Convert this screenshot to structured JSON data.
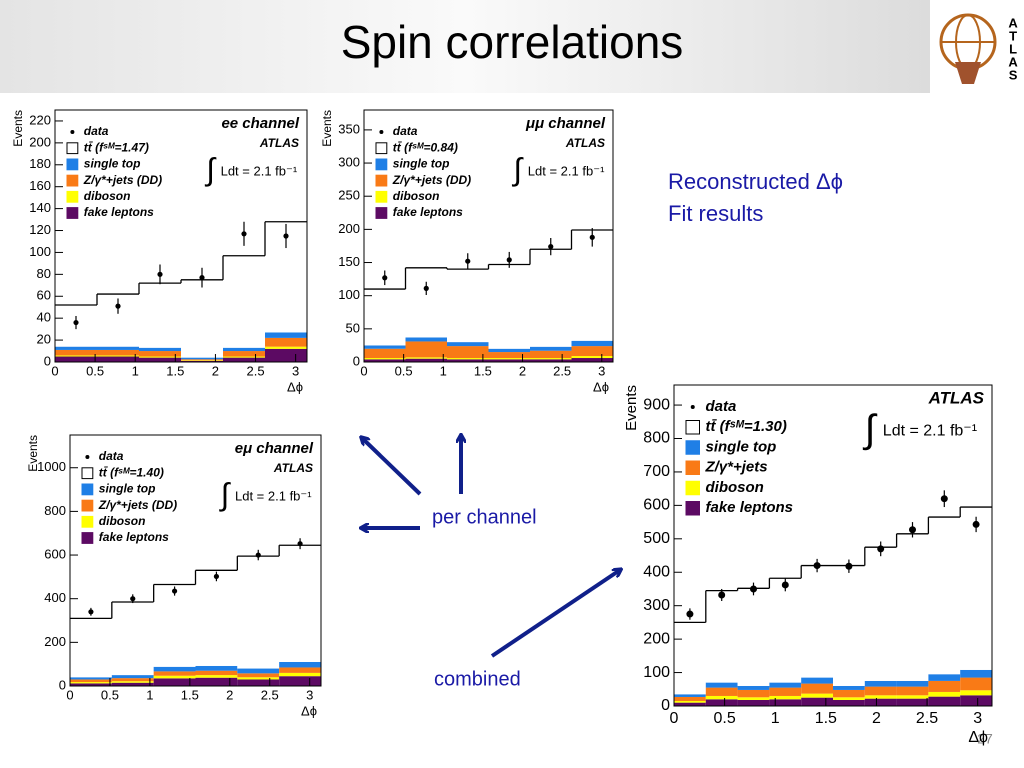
{
  "slide": {
    "title": "Spin correlations",
    "notes": [
      "Reconstructed Δϕ",
      "Fit results"
    ],
    "per_channel": "per channel",
    "combined": "combined",
    "page": "27",
    "logo": "ATLAS"
  },
  "chart_data": [
    {
      "type": "histogram",
      "x_label": "Δϕ",
      "y_label": "Events",
      "annotations": {
        "channel": "ee channel",
        "experiment": "ATLAS",
        "integral": "∫",
        "lumi": "Ldt = 2.1 fb⁻¹"
      },
      "bins": [
        0,
        0.5236,
        1.0472,
        1.5708,
        2.0944,
        2.618,
        3.1416
      ],
      "xlim": [
        0,
        3.1416
      ],
      "xticks": [
        0,
        0.5,
        1,
        1.5,
        2,
        2.5,
        3
      ],
      "ylim": [
        0,
        230
      ],
      "yticks": [
        0,
        20,
        40,
        60,
        80,
        100,
        120,
        140,
        160,
        180,
        200,
        220
      ],
      "data": {
        "name": "data",
        "values": [
          36,
          51,
          80,
          77,
          117,
          115
        ],
        "errors": [
          6,
          7,
          9,
          9,
          11,
          11
        ]
      },
      "series": [
        {
          "name": "fake leptons",
          "color": "#5c0a63",
          "values": [
            5,
            5,
            4,
            1,
            4,
            12
          ]
        },
        {
          "name": "diboson",
          "color": "#ffff00",
          "values": [
            1,
            1,
            1,
            0.5,
            1,
            2
          ]
        },
        {
          "name": "Z/γ*+jets (DD)",
          "color": "#f97a16",
          "values": [
            5,
            5,
            5,
            1,
            5,
            8
          ]
        },
        {
          "name": "single top",
          "color": "#1f7fe6",
          "values": [
            3,
            3,
            3,
            1.5,
            3,
            5
          ]
        },
        {
          "name": "tt̄ (fˢᴹ=1.47)",
          "color": "#ffffff",
          "values": [
            38,
            48,
            59,
            71,
            84,
            101
          ]
        }
      ]
    },
    {
      "type": "histogram",
      "x_label": "Δϕ",
      "y_label": "Events",
      "annotations": {
        "channel": "μμ channel",
        "experiment": "ATLAS",
        "integral": "∫",
        "lumi": "Ldt = 2.1 fb⁻¹"
      },
      "bins": [
        0,
        0.5236,
        1.0472,
        1.5708,
        2.0944,
        2.618,
        3.1416
      ],
      "xlim": [
        0,
        3.1416
      ],
      "xticks": [
        0,
        0.5,
        1,
        1.5,
        2,
        2.5,
        3
      ],
      "ylim": [
        0,
        380
      ],
      "yticks": [
        0,
        50,
        100,
        150,
        200,
        250,
        300,
        350
      ],
      "data": {
        "name": "data",
        "values": [
          127,
          111,
          152,
          154,
          174,
          188
        ],
        "errors": [
          11,
          10,
          12,
          12,
          13,
          14
        ]
      },
      "series": [
        {
          "name": "fake leptons",
          "color": "#5c0a63",
          "values": [
            4,
            5,
            4,
            4,
            4,
            6
          ]
        },
        {
          "name": "diboson",
          "color": "#ffff00",
          "values": [
            2,
            2,
            2,
            2,
            2,
            3
          ]
        },
        {
          "name": "Z/γ*+jets (DD)",
          "color": "#f97a16",
          "values": [
            14,
            24,
            18,
            9,
            11,
            15
          ]
        },
        {
          "name": "single top",
          "color": "#1f7fe6",
          "values": [
            5,
            6,
            6,
            5,
            6,
            8
          ]
        },
        {
          "name": "tt̄ (fˢᴹ=0.84)",
          "color": "#ffffff",
          "values": [
            85,
            105,
            110,
            127,
            147,
            167
          ]
        }
      ]
    },
    {
      "type": "histogram",
      "x_label": "Δϕ",
      "y_label": "Events",
      "annotations": {
        "channel": "eμ channel",
        "experiment": "ATLAS",
        "integral": "∫",
        "lumi": "Ldt = 2.1 fb⁻¹"
      },
      "bins": [
        0,
        0.5236,
        1.0472,
        1.5708,
        2.0944,
        2.618,
        3.1416
      ],
      "xlim": [
        0,
        3.1416
      ],
      "xticks": [
        0,
        0.5,
        1,
        1.5,
        2,
        2.5,
        3
      ],
      "ylim": [
        0,
        1150
      ],
      "yticks": [
        0,
        200,
        400,
        600,
        800,
        1000
      ],
      "data": {
        "name": "data",
        "values": [
          340,
          400,
          435,
          502,
          600,
          652
        ],
        "errors": [
          18,
          20,
          21,
          22,
          24,
          25
        ]
      },
      "series": [
        {
          "name": "fake leptons",
          "color": "#5c0a63",
          "values": [
            12,
            15,
            35,
            38,
            30,
            45
          ]
        },
        {
          "name": "diboson",
          "color": "#ffff00",
          "values": [
            6,
            7,
            12,
            12,
            10,
            15
          ]
        },
        {
          "name": "Z/γ*+jets (DD)",
          "color": "#f97a16",
          "values": [
            12,
            14,
            20,
            20,
            18,
            25
          ]
        },
        {
          "name": "single top",
          "color": "#1f7fe6",
          "values": [
            10,
            14,
            21,
            22,
            22,
            25
          ]
        },
        {
          "name": "tt̄ (fˢᴹ=1.40)",
          "color": "#ffffff",
          "values": [
            270,
            335,
            377,
            438,
            515,
            535
          ]
        }
      ]
    },
    {
      "type": "histogram",
      "x_label": "Δϕ",
      "y_label": "Events",
      "annotations": {
        "experiment": "ATLAS",
        "integral": "∫",
        "lumi": "Ldt = 2.1 fb⁻¹"
      },
      "bins": [
        0,
        0.3142,
        0.6283,
        0.9425,
        1.2566,
        1.5708,
        1.885,
        2.1991,
        2.5133,
        2.8274,
        3.1416
      ],
      "xlim": [
        0,
        3.1416
      ],
      "xticks": [
        0,
        0.5,
        1,
        1.5,
        2,
        2.5,
        3
      ],
      "ylim": [
        0,
        960
      ],
      "yticks": [
        0,
        100,
        200,
        300,
        400,
        500,
        600,
        700,
        800,
        900
      ],
      "data": {
        "name": "data",
        "values": [
          275,
          332,
          350,
          362,
          420,
          418,
          470,
          527,
          620,
          543
        ],
        "errors": [
          17,
          18,
          19,
          19,
          20,
          20,
          22,
          23,
          25,
          23
        ]
      },
      "series": [
        {
          "name": "fake leptons",
          "color": "#5c0a63",
          "values": [
            10,
            20,
            18,
            20,
            25,
            18,
            22,
            22,
            28,
            32
          ]
        },
        {
          "name": "diboson",
          "color": "#ffff00",
          "values": [
            5,
            10,
            8,
            10,
            12,
            8,
            10,
            10,
            14,
            15
          ]
        },
        {
          "name": "Z/γ*+jets",
          "color": "#f97a16",
          "values": [
            12,
            25,
            22,
            25,
            30,
            22,
            26,
            26,
            33,
            38
          ]
        },
        {
          "name": "single top",
          "color": "#1f7fe6",
          "values": [
            8,
            15,
            12,
            15,
            18,
            12,
            17,
            17,
            20,
            23
          ]
        },
        {
          "name": "tt̄ (fˢᴹ=1.30)",
          "color": "#ffffff",
          "values": [
            215,
            275,
            292,
            312,
            335,
            360,
            400,
            440,
            470,
            487
          ]
        }
      ]
    }
  ]
}
